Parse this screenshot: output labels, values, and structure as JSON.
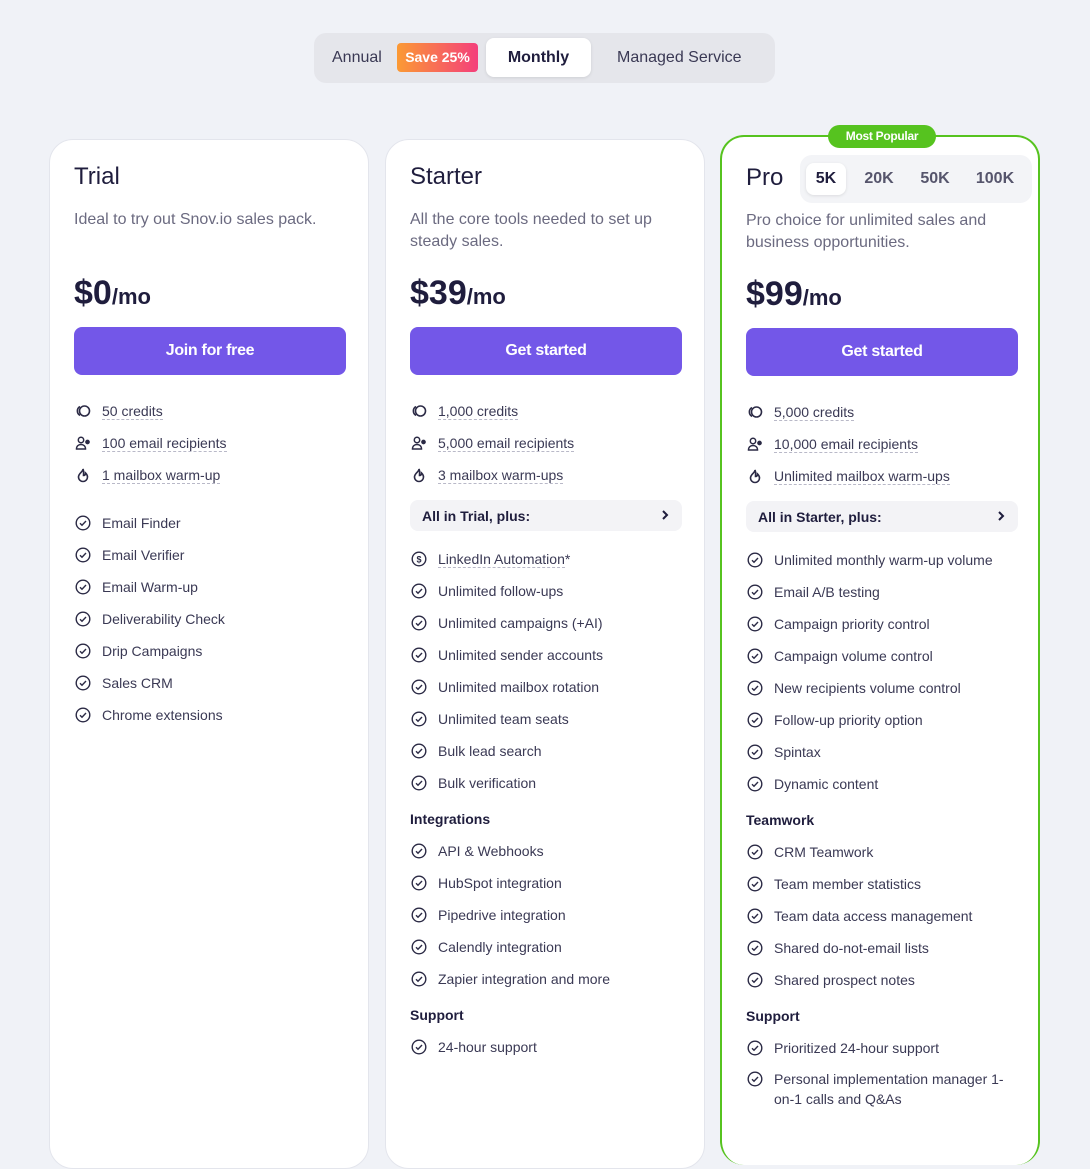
{
  "billing_toggle": {
    "annual": "Annual",
    "save_badge": "Save 25%",
    "monthly": "Monthly",
    "managed": "Managed Service",
    "selected": "Monthly"
  },
  "colors": {
    "accent": "#7357e8",
    "popular": "#56c31f",
    "background": "#f0f2f7"
  },
  "cards": [
    {
      "title": "Trial",
      "description": "Ideal to try out Snov.io sales pack.",
      "price": "$0",
      "period": "/mo",
      "cta": "Join for free",
      "limits": [
        {
          "icon": "coins-icon",
          "text": "50 credits"
        },
        {
          "icon": "users-icon",
          "text": "100 email recipients"
        },
        {
          "icon": "flame-icon",
          "text": "1 mailbox warm-up"
        }
      ],
      "features": [
        "Email Finder",
        "Email Verifier",
        "Email Warm-up",
        "Deliverability Check",
        "Drip Campaigns",
        "Sales CRM",
        "Chrome extensions"
      ]
    },
    {
      "title": "Starter",
      "description": "All the core tools needed to set up steady sales.",
      "price": "$39",
      "period": "/mo",
      "cta": "Get started",
      "limits": [
        {
          "icon": "coins-icon",
          "text": "1,000 credits"
        },
        {
          "icon": "users-icon",
          "text": "5,000 email recipients"
        },
        {
          "icon": "flame-icon",
          "text": "3 mailbox warm-ups"
        }
      ],
      "plus": "All in Trial, plus:",
      "addon": {
        "icon": "dollar-circle-icon",
        "text": "LinkedIn Automation",
        "suffix": " *"
      },
      "features": [
        "Unlimited follow-ups",
        "Unlimited campaigns (+AI)",
        "Unlimited sender accounts",
        "Unlimited mailbox rotation",
        "Unlimited team seats",
        "Bulk lead search",
        "Bulk verification"
      ],
      "sections": [
        {
          "heading": "Integrations",
          "items": [
            "API & Webhooks",
            "HubSpot integration",
            "Pipedrive integration",
            "Calendly integration",
            "Zapier integration and more"
          ]
        },
        {
          "heading": "Support",
          "items": [
            "24-hour support"
          ]
        }
      ]
    },
    {
      "title": "Pro",
      "badge": "Most Popular",
      "tiers": [
        "5K",
        "20K",
        "50K",
        "100K"
      ],
      "selected_tier": "5K",
      "description": "Pro choice for unlimited sales and business opportunities.",
      "price": "$99",
      "period": "/mo",
      "cta": "Get started",
      "limits": [
        {
          "icon": "coins-icon",
          "text": "5,000 credits"
        },
        {
          "icon": "users-icon",
          "text": "10,000 email recipients"
        },
        {
          "icon": "flame-icon",
          "text": "Unlimited mailbox warm-ups"
        }
      ],
      "plus": "All in Starter, plus:",
      "features": [
        "Unlimited monthly warm-up volume",
        "Email A/B testing",
        "Campaign priority control",
        "Campaign volume control",
        "New recipients volume control",
        "Follow-up priority option",
        "Spintax",
        "Dynamic content"
      ],
      "sections": [
        {
          "heading": "Teamwork",
          "items": [
            "CRM Teamwork",
            "Team member statistics",
            "Team data access management",
            "Shared do-not-email lists",
            "Shared prospect notes"
          ]
        },
        {
          "heading": "Support",
          "items": [
            "Prioritized 24-hour support",
            "Personal implementation manager 1-on-1 calls and Q&As"
          ]
        }
      ]
    }
  ]
}
